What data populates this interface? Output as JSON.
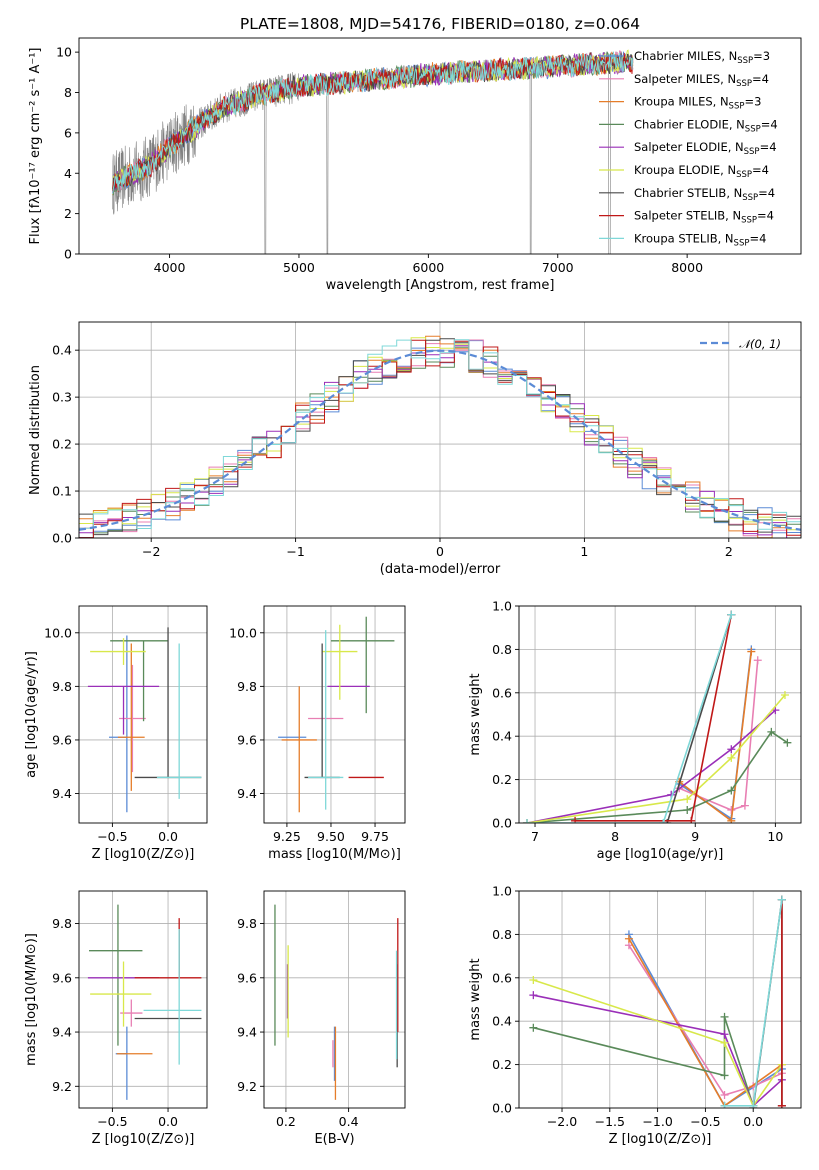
{
  "title": "PLATE=1808, MJD=54176, FIBERID=0180, z=0.064",
  "series": [
    {
      "key": "chab_miles",
      "name": "Chabrier MILES, N",
      "sub": "SSP",
      "tail": "=3",
      "color": "#5b8bd6"
    },
    {
      "key": "salp_miles",
      "name": "Salpeter MILES, N",
      "sub": "SSP",
      "tail": "=4",
      "color": "#e87fb3"
    },
    {
      "key": "krou_miles",
      "name": "Kroupa MILES, N",
      "sub": "SSP",
      "tail": "=3",
      "color": "#e57d2a"
    },
    {
      "key": "chab_elodie",
      "name": "Chabrier ELODIE, N",
      "sub": "SSP",
      "tail": "=4",
      "color": "#5a8a5a"
    },
    {
      "key": "salp_elodie",
      "name": "Salpeter ELODIE, N",
      "sub": "SSP",
      "tail": "=4",
      "color": "#9a2fb8"
    },
    {
      "key": "krou_elodie",
      "name": "Kroupa ELODIE, N",
      "sub": "SSP",
      "tail": "=4",
      "color": "#d8e84a"
    },
    {
      "key": "chab_stelib",
      "name": "Chabrier STELIB, N",
      "sub": "SSP",
      "tail": "=4",
      "color": "#4a4a4a"
    },
    {
      "key": "salp_stelib",
      "name": "Salpeter STELIB, N",
      "sub": "SSP",
      "tail": "=4",
      "color": "#c01818"
    },
    {
      "key": "krou_stelib",
      "name": "Kroupa STELIB, N",
      "sub": "SSP",
      "tail": "=4",
      "color": "#7fd8d8"
    }
  ],
  "chart_data": [
    {
      "id": "spectrum",
      "type": "line",
      "xlabel": "wavelength [Angstrom, rest frame]",
      "ylabel": "Flux [fλ10⁻¹⁷ erg cm⁻² s⁻¹ A⁻¹]",
      "xlim": [
        3300,
        8880
      ],
      "ylim": [
        0,
        10.7
      ],
      "xticks": [
        4000,
        5000,
        6000,
        7000,
        8000
      ],
      "yticks": [
        0,
        2,
        4,
        6,
        8,
        10
      ],
      "data_color": "#808080",
      "continuum": {
        "x": [
          3560,
          3700,
          3850,
          4000,
          4200,
          4400,
          4700,
          5000,
          5500,
          6000,
          6500,
          7000,
          7500
        ],
        "y": [
          3.5,
          3.9,
          4.4,
          5.3,
          6.3,
          7.2,
          7.9,
          8.3,
          8.6,
          8.9,
          9.1,
          9.3,
          9.5
        ]
      },
      "data_range": [
        3560,
        7520
      ],
      "model_range": [
        3560,
        7580
      ],
      "legend": "right"
    },
    {
      "id": "residuals",
      "type": "histogram",
      "xlabel": "(data-model)/error",
      "ylabel": "Normed distribution",
      "xlim": [
        -2.5,
        2.5
      ],
      "ylim": [
        0,
        0.46
      ],
      "xticks": [
        -2,
        -1,
        0,
        1,
        2
      ],
      "yticks": [
        0.0,
        0.1,
        0.2,
        0.3,
        0.4
      ],
      "bin_width": 0.1,
      "reference": {
        "name": "𝒩(0, 1)",
        "mean": 0,
        "sigma": 1,
        "color": "#5b8bd6"
      },
      "legend": "top-right"
    },
    {
      "id": "age_vs_Z",
      "type": "errorbar",
      "xlabel": "Z [log10(Z/Z⊙)]",
      "ylabel": "age  [log10(age/yr)]",
      "xlim": [
        -0.8,
        0.35
      ],
      "ylim": [
        9.29,
        10.1
      ],
      "xticks": [
        -0.5,
        0.0
      ],
      "yticks": [
        9.4,
        9.6,
        9.8,
        10.0
      ],
      "points": [
        {
          "s": "chab_miles",
          "x": -0.37,
          "y": 9.61,
          "xerr": [
            0.16,
            0.0
          ],
          "yerr": [
            0.28,
            0.38
          ]
        },
        {
          "s": "salp_miles",
          "x": -0.32,
          "y": 9.68,
          "xerr": [
            0.12,
            0.12
          ],
          "yerr": [
            0.2,
            0.2
          ]
        },
        {
          "s": "krou_miles",
          "x": -0.33,
          "y": 9.61,
          "xerr": [
            0.12,
            0.12
          ],
          "yerr": [
            0.2,
            0.35
          ]
        },
        {
          "s": "chab_elodie",
          "x": -0.22,
          "y": 9.97,
          "xerr": [
            0.3,
            0.22
          ],
          "yerr": [
            0.3,
            0.0
          ]
        },
        {
          "s": "salp_elodie",
          "x": -0.4,
          "y": 9.8,
          "xerr": [
            0.32,
            0.32
          ],
          "yerr": [
            0.18,
            0.0
          ]
        },
        {
          "s": "krou_elodie",
          "x": -0.4,
          "y": 9.93,
          "xerr": [
            0.3,
            0.2
          ],
          "yerr": [
            0.05,
            0.05
          ]
        },
        {
          "s": "chab_stelib",
          "x": 0.0,
          "y": 9.46,
          "xerr": [
            0.3,
            0.3
          ],
          "yerr": [
            0.0,
            0.56
          ]
        },
        {
          "s": "salp_stelib",
          "x": 0.3,
          "y": 9.46,
          "xerr": [
            0.0,
            0.0
          ],
          "yerr": [
            0.0,
            0.0
          ]
        },
        {
          "s": "krou_stelib",
          "x": 0.1,
          "y": 9.46,
          "xerr": [
            0.2,
            0.2
          ],
          "yerr": [
            0.08,
            0.5
          ]
        }
      ]
    },
    {
      "id": "age_vs_mass",
      "type": "errorbar",
      "xlabel": "mass [log10(M/M⊙)]",
      "ylabel": "",
      "xlim": [
        9.12,
        9.92
      ],
      "ylim": [
        9.29,
        10.1
      ],
      "xticks": [
        9.25,
        9.5,
        9.75
      ],
      "yticks": [
        9.4,
        9.6,
        9.8,
        10.0
      ],
      "points": [
        {
          "s": "chab_miles",
          "x": 9.28,
          "y": 9.61,
          "xerr": [
            0.08,
            0.08
          ],
          "yerr": [
            0.0,
            0.0
          ]
        },
        {
          "s": "salp_miles",
          "x": 9.47,
          "y": 9.68,
          "xerr": [
            0.1,
            0.1
          ],
          "yerr": [
            0.0,
            0.0
          ]
        },
        {
          "s": "krou_miles",
          "x": 9.32,
          "y": 9.6,
          "xerr": [
            0.1,
            0.1
          ],
          "yerr": [
            0.27,
            0.2
          ]
        },
        {
          "s": "chab_elodie",
          "x": 9.7,
          "y": 9.97,
          "xerr": [
            0.2,
            0.16
          ],
          "yerr": [
            0.27,
            0.09
          ]
        },
        {
          "s": "salp_elodie",
          "x": 9.6,
          "y": 9.8,
          "xerr": [
            0.12,
            0.12
          ],
          "yerr": [
            0.0,
            0.0
          ]
        },
        {
          "s": "krou_elodie",
          "x": 9.55,
          "y": 9.93,
          "xerr": [
            0.1,
            0.1
          ],
          "yerr": [
            0.18,
            0.1
          ]
        },
        {
          "s": "chab_stelib",
          "x": 9.45,
          "y": 9.46,
          "xerr": [
            0.1,
            0.1
          ],
          "yerr": [
            0.0,
            0.5
          ]
        },
        {
          "s": "salp_stelib",
          "x": 9.7,
          "y": 9.46,
          "xerr": [
            0.1,
            0.1
          ],
          "yerr": [
            0.0,
            0.0
          ]
        },
        {
          "s": "krou_stelib",
          "x": 9.47,
          "y": 9.46,
          "xerr": [
            0.1,
            0.1
          ],
          "yerr": [
            0.12,
            0.55
          ]
        }
      ]
    },
    {
      "id": "weight_vs_age",
      "type": "line",
      "xlabel": "age  [log10(age/yr)]",
      "ylabel": "mass weight",
      "xlim": [
        6.8,
        10.32
      ],
      "ylim": [
        0,
        1
      ],
      "xticks": [
        7,
        8,
        9,
        10
      ],
      "yticks": [
        0.0,
        0.2,
        0.4,
        0.6,
        0.8,
        1.0
      ],
      "series": [
        {
          "s": "chab_miles",
          "x": [
            8.8,
            9.45,
            9.7
          ],
          "y": [
            0.18,
            0.02,
            0.8
          ]
        },
        {
          "s": "salp_miles",
          "x": [
            8.8,
            9.45,
            9.62,
            9.78
          ],
          "y": [
            0.16,
            0.06,
            0.08,
            0.75
          ]
        },
        {
          "s": "krou_miles",
          "x": [
            8.8,
            9.45,
            9.7
          ],
          "y": [
            0.19,
            0.01,
            0.79
          ]
        },
        {
          "s": "chab_elodie",
          "x": [
            6.9,
            8.9,
            9.45,
            9.95,
            10.15
          ],
          "y": [
            0.0,
            0.06,
            0.15,
            0.42,
            0.37
          ]
        },
        {
          "s": "salp_elodie",
          "x": [
            6.9,
            8.7,
            9.45,
            10.0
          ],
          "y": [
            0.0,
            0.13,
            0.34,
            0.52
          ]
        },
        {
          "s": "krou_elodie",
          "x": [
            6.9,
            8.9,
            9.45,
            10.12
          ],
          "y": [
            0.0,
            0.11,
            0.3,
            0.59
          ]
        },
        {
          "s": "chab_stelib",
          "x": [
            8.65,
            9.45
          ],
          "y": [
            0.0,
            0.96
          ]
        },
        {
          "s": "salp_stelib",
          "x": [
            7.5,
            8.95,
            9.45
          ],
          "y": [
            0.01,
            0.01,
            0.96
          ]
        },
        {
          "s": "krou_stelib",
          "x": [
            6.9,
            8.6,
            9.45
          ],
          "y": [
            0.0,
            0.0,
            0.96
          ]
        }
      ]
    },
    {
      "id": "mass_vs_Z",
      "type": "errorbar",
      "xlabel": "Z [log10(Z/Z⊙)]",
      "ylabel": "mass [log10(M/M⊙)]",
      "xlim": [
        -0.8,
        0.35
      ],
      "ylim": [
        9.12,
        9.92
      ],
      "xticks": [
        -0.5,
        0.0
      ],
      "yticks": [
        9.2,
        9.4,
        9.6,
        9.8
      ],
      "points": [
        {
          "s": "chab_miles",
          "x": -0.37,
          "y": 9.32,
          "xerr": [
            0.1,
            0.0
          ],
          "yerr": [
            0.17,
            0.1
          ]
        },
        {
          "s": "salp_miles",
          "x": -0.33,
          "y": 9.47,
          "xerr": [
            0.1,
            0.1
          ],
          "yerr": [
            0.05,
            0.05
          ]
        },
        {
          "s": "krou_miles",
          "x": -0.3,
          "y": 9.32,
          "xerr": [
            0.16,
            0.16
          ],
          "yerr": [
            0.0,
            0.0
          ]
        },
        {
          "s": "chab_elodie",
          "x": -0.45,
          "y": 9.7,
          "xerr": [
            0.26,
            0.22
          ],
          "yerr": [
            0.35,
            0.17
          ]
        },
        {
          "s": "salp_elodie",
          "x": -0.4,
          "y": 9.6,
          "xerr": [
            0.32,
            0.32
          ],
          "yerr": [
            0.0,
            0.0
          ]
        },
        {
          "s": "krou_elodie",
          "x": -0.4,
          "y": 9.54,
          "xerr": [
            0.3,
            0.25
          ],
          "yerr": [
            0.12,
            0.12
          ]
        },
        {
          "s": "chab_stelib",
          "x": 0.0,
          "y": 9.45,
          "xerr": [
            0.3,
            0.3
          ],
          "yerr": [
            0.0,
            0.0
          ]
        },
        {
          "s": "salp_stelib",
          "x": 0.1,
          "y": 9.6,
          "xerr": [
            0.4,
            0.2
          ],
          "yerr": [
            0.0,
            0.22
          ]
        },
        {
          "s": "krou_stelib",
          "x": 0.1,
          "y": 9.48,
          "xerr": [
            0.32,
            0.2
          ],
          "yerr": [
            0.2,
            0.3
          ]
        }
      ]
    },
    {
      "id": "mass_vs_ebv",
      "type": "errorbar",
      "xlabel": "E(B-V)",
      "ylabel": "",
      "xlim": [
        0.13,
        0.58
      ],
      "ylim": [
        9.12,
        9.92
      ],
      "xticks": [
        0.2,
        0.4
      ],
      "yticks": [
        9.2,
        9.4,
        9.6,
        9.8
      ],
      "points": [
        {
          "s": "chab_miles",
          "x": 0.355,
          "y": 9.32,
          "xerr": [
            0,
            0
          ],
          "yerr": [
            0.1,
            0.1
          ]
        },
        {
          "s": "salp_miles",
          "x": 0.35,
          "y": 9.32,
          "xerr": [
            0,
            0
          ],
          "yerr": [
            0.05,
            0.05
          ]
        },
        {
          "s": "krou_miles",
          "x": 0.358,
          "y": 9.32,
          "xerr": [
            0,
            0
          ],
          "yerr": [
            0.17,
            0.1
          ]
        },
        {
          "s": "chab_elodie",
          "x": 0.165,
          "y": 9.6,
          "xerr": [
            0,
            0
          ],
          "yerr": [
            0.25,
            0.27
          ]
        },
        {
          "s": "salp_elodie",
          "x": 0.205,
          "y": 9.55,
          "xerr": [
            0,
            0
          ],
          "yerr": [
            0.1,
            0.1
          ]
        },
        {
          "s": "krou_elodie",
          "x": 0.207,
          "y": 9.55,
          "xerr": [
            0,
            0
          ],
          "yerr": [
            0.17,
            0.17
          ]
        },
        {
          "s": "chab_stelib",
          "x": 0.555,
          "y": 9.45,
          "xerr": [
            0,
            0
          ],
          "yerr": [
            0.18,
            0.2
          ]
        },
        {
          "s": "salp_stelib",
          "x": 0.557,
          "y": 9.6,
          "xerr": [
            0,
            0
          ],
          "yerr": [
            0.2,
            0.22
          ]
        },
        {
          "s": "krou_stelib",
          "x": 0.553,
          "y": 9.5,
          "xerr": [
            0,
            0
          ],
          "yerr": [
            0.2,
            0.2
          ]
        }
      ]
    },
    {
      "id": "weight_vs_Z",
      "type": "line",
      "xlabel": "Z [log10(Z/Z⊙)]",
      "ylabel": "mass weight",
      "xlim": [
        -2.45,
        0.5
      ],
      "ylim": [
        0,
        1
      ],
      "xticks": [
        -2.0,
        -1.5,
        -1.0,
        -0.5,
        0.0
      ],
      "yticks": [
        0.0,
        0.2,
        0.4,
        0.6,
        0.8,
        1.0
      ],
      "series": [
        {
          "s": "chab_miles",
          "x": [
            -1.3,
            -0.3,
            0.3
          ],
          "y": [
            0.8,
            0.01,
            0.18
          ]
        },
        {
          "s": "salp_miles",
          "x": [
            -1.3,
            -0.3,
            0.0,
            0.3
          ],
          "y": [
            0.75,
            0.06,
            0.1,
            0.16
          ]
        },
        {
          "s": "krou_miles",
          "x": [
            -1.3,
            -0.3,
            0.3
          ],
          "y": [
            0.78,
            0.01,
            0.2
          ]
        },
        {
          "s": "chab_elodie",
          "x": [
            -2.3,
            -0.3,
            -0.3,
            0.0
          ],
          "y": [
            0.37,
            0.15,
            0.42,
            0.01
          ]
        },
        {
          "s": "salp_elodie",
          "x": [
            -2.3,
            -0.3,
            0.0,
            0.3
          ],
          "y": [
            0.52,
            0.34,
            0.01,
            0.13
          ]
        },
        {
          "s": "krou_elodie",
          "x": [
            -2.3,
            -0.3,
            0.0,
            0.3
          ],
          "y": [
            0.59,
            0.3,
            0.01,
            0.2
          ]
        },
        {
          "s": "chab_stelib",
          "x": [
            0.0,
            0.3,
            0.3
          ],
          "y": [
            0.0,
            0.96,
            0.01
          ]
        },
        {
          "s": "salp_stelib",
          "x": [
            0.3,
            0.3
          ],
          "y": [
            0.01,
            0.96
          ]
        },
        {
          "s": "krou_stelib",
          "x": [
            -0.3,
            0.0,
            0.3
          ],
          "y": [
            0.01,
            0.01,
            0.96
          ]
        }
      ]
    }
  ]
}
